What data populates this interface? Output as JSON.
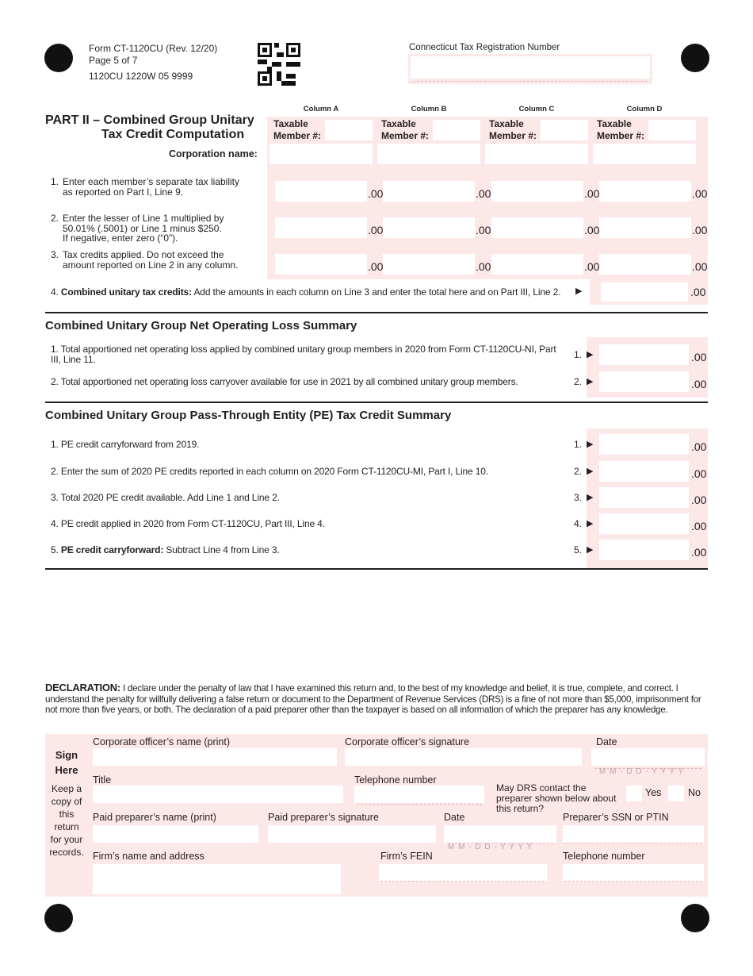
{
  "header": {
    "form": "Form CT-1120CU (Rev. 12/20)",
    "page": "Page 5 of 7",
    "code": "1120CU 1220W 05 9999",
    "reg_label": "Connecticut Tax Registration Number"
  },
  "part2": {
    "title1": "PART II – Combined Group Unitary",
    "title2": "Tax Credit Computation",
    "columns": [
      "Column A",
      "Column B",
      "Column C",
      "Column D"
    ],
    "taxable": "Taxable",
    "member": "Member #:",
    "corp_name": "Corporation name:",
    "lines": [
      {
        "n": "1.",
        "t1": "Enter each member’s separate tax liability",
        "t2": "as reported on Part I, Line 9.",
        "t3": ""
      },
      {
        "n": "2.",
        "t1": "Enter the lesser of Line 1 multiplied by",
        "t2": "50.01% (.5001) or Line 1 minus $250.",
        "t3": "If negative, enter zero (“0”)."
      },
      {
        "n": "3.",
        "t1": "Tax credits applied. Do not exceed the",
        "t2": "amount reported on Line 2 in any column.",
        "t3": ""
      }
    ],
    "line4_bold": "Combined unitary tax credits:",
    "line4_n": "4.",
    "line4_rest": "Add the amounts in each column on Line 3 and enter the total here and on Part III, Line 2.",
    "cents": ".00"
  },
  "nol": {
    "title": "Combined Unitary Group Net Operating Loss Summary",
    "lines": [
      {
        "t": "1. Total apportioned net operating loss applied by combined unitary group members in 2020 from Form CT-1120CU-NI, Part III, Line 11.",
        "n": "1."
      },
      {
        "t": "2. Total apportioned net operating loss carryover available for use in 2021 by all combined unitary group members.",
        "n": "2."
      }
    ]
  },
  "pe": {
    "title": "Combined Unitary Group Pass-Through Entity (PE) Tax Credit Summary",
    "lines": [
      {
        "t": "1. PE credit carryforward from 2019.",
        "n": "1.",
        "b": ""
      },
      {
        "t": "2. Enter the sum of 2020 PE credits reported in each column on 2020 Form CT-1120CU-MI, Part I, Line 10.",
        "n": "2.",
        "b": ""
      },
      {
        "t": "3. Total 2020 PE credit available. Add Line 1 and Line 2.",
        "n": "3.",
        "b": ""
      },
      {
        "t": "4. PE credit applied in 2020 from Form CT-1120CU, Part III, Line 4.",
        "n": "4.",
        "b": ""
      },
      {
        "t": "Subtract Line 4 from Line 3.",
        "n": "5.",
        "b": "PE credit carryforward:",
        "pre": "5. "
      }
    ]
  },
  "decl": {
    "bold": "DECLARATION:",
    "text": "I declare under the penalty of law that I have examined this return and, to the best of my knowledge and belief, it is true, complete, and correct. I understand the penalty for willfully delivering a false return or document to the Department of Revenue Services (DRS) is a fine of not more than $5,000, imprisonment for not more than five years, or both. The declaration of a paid preparer other than the taxpayer is based on all information of which the preparer has any knowledge.",
    "sign": "Sign",
    "here": "Here",
    "keep": "Keep a copy of this return for your records.",
    "officer_name": "Corporate officer’s name (print)",
    "officer_sig": "Corporate officer’s signature",
    "date": "Date",
    "date_fmt": "M M - D D - Y Y Y Y",
    "title": "Title",
    "phone": "Telephone number",
    "may_contact": "May DRS contact the preparer shown below about this return?",
    "yes": "Yes",
    "no": "No",
    "prep_name": "Paid preparer’s name (print)",
    "prep_sig": "Paid preparer’s signature",
    "ssn": "Preparer’s SSN or PTIN",
    "firm": "Firm’s name and address",
    "fein": "Firm’s FEIN"
  }
}
